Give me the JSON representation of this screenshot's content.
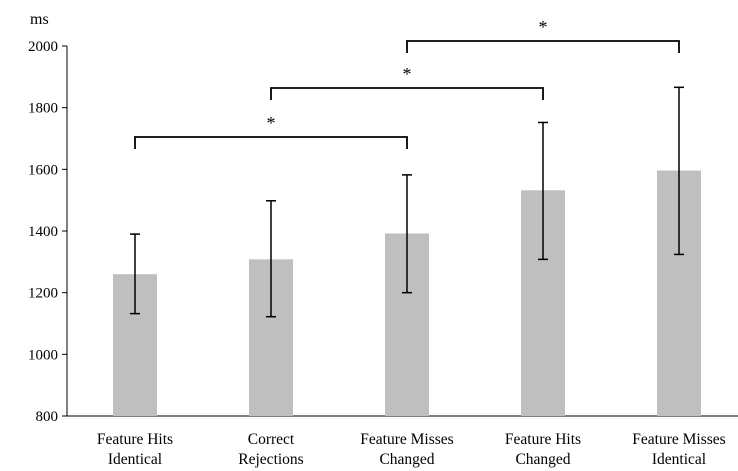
{
  "chart_data": {
    "type": "bar",
    "title": "",
    "xlabel": "",
    "ylabel": "",
    "unit_label": "ms",
    "ylim": [
      800,
      2000
    ],
    "y_ticks": [
      800,
      1000,
      1200,
      1400,
      1600,
      1800,
      2000
    ],
    "y_tick_labels": [
      "800",
      "1000",
      "1200",
      "1400",
      "1600",
      "1800",
      "2000"
    ],
    "grid": false,
    "bar_color": "#bfbfbf",
    "categories": [
      [
        "Feature Hits",
        "Identical"
      ],
      [
        "Correct",
        "Rejections"
      ],
      [
        "Feature Misses",
        "Changed"
      ],
      [
        "Feature Hits",
        "Changed"
      ],
      [
        "Feature Misses",
        "Identical"
      ]
    ],
    "values": [
      1260,
      1308,
      1392,
      1532,
      1596
    ],
    "error_bars": [
      {
        "low": 1132,
        "high": 1390
      },
      {
        "low": 1122,
        "high": 1498
      },
      {
        "low": 1200,
        "high": 1582
      },
      {
        "low": 1308,
        "high": 1752
      },
      {
        "low": 1324,
        "high": 1866
      }
    ],
    "significance": [
      {
        "from": 0,
        "to": 2,
        "label": "*"
      },
      {
        "from": 1,
        "to": 3,
        "label": "*"
      },
      {
        "from": 2,
        "to": 4,
        "label": "*"
      }
    ]
  }
}
